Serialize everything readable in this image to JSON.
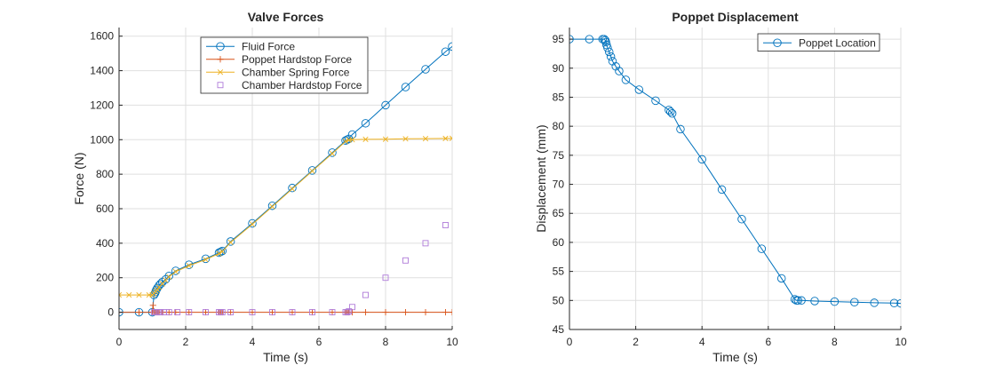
{
  "chart_data": [
    {
      "type": "line",
      "title": "Valve Forces",
      "xlabel": "Time (s)",
      "ylabel": "Force (N)",
      "xlim": [
        0,
        10
      ],
      "ylim": [
        -100,
        1650
      ],
      "xticks": [
        0,
        2,
        4,
        6,
        8,
        10
      ],
      "yticks": [
        0,
        200,
        400,
        600,
        800,
        1000,
        1200,
        1400,
        1600
      ],
      "grid": true,
      "legend_position": "top-center",
      "series": [
        {
          "name": "Fluid Force",
          "color": "#0072BD",
          "marker": "circle",
          "line": true,
          "x": [
            0,
            0.6,
            1.0,
            1.05,
            1.08,
            1.1,
            1.12,
            1.15,
            1.2,
            1.25,
            1.3,
            1.4,
            1.5,
            1.7,
            2.1,
            2.6,
            3.0,
            3.05,
            3.1,
            3.35,
            4.0,
            4.6,
            5.2,
            5.8,
            6.4,
            6.8,
            6.85,
            6.9,
            7.0,
            7.4,
            8.0,
            8.6,
            9.2,
            9.8,
            10.0
          ],
          "y": [
            0,
            0,
            0,
            100,
            110,
            120,
            130,
            140,
            155,
            165,
            175,
            190,
            210,
            240,
            275,
            310,
            345,
            350,
            355,
            410,
            515,
            617,
            720,
            822,
            925,
            995,
            1000,
            1005,
            1030,
            1095,
            1200,
            1305,
            1408,
            1510,
            1540
          ]
        },
        {
          "name": "Poppet Hardstop Force",
          "color": "#D95319",
          "marker": "plus",
          "line": true,
          "x": [
            0,
            0.6,
            1.0,
            1.02,
            1.05,
            1.1,
            1.15,
            1.2,
            1.3,
            1.5,
            1.7,
            2.1,
            2.6,
            3.0,
            3.05,
            3.1,
            3.35,
            4.0,
            4.6,
            5.2,
            5.8,
            6.4,
            6.8,
            6.85,
            6.9,
            7.0,
            7.4,
            8.0,
            8.6,
            9.2,
            9.8,
            10.0
          ],
          "y": [
            0,
            0,
            0,
            40,
            0,
            0,
            0,
            0,
            0,
            0,
            0,
            0,
            0,
            0,
            0,
            0,
            0,
            0,
            0,
            0,
            0,
            0,
            0,
            0,
            0,
            0,
            0,
            0,
            0,
            0,
            0,
            0
          ]
        },
        {
          "name": "Chamber Spring Force",
          "color": "#EDB120",
          "marker": "x",
          "line": true,
          "x": [
            0,
            0.3,
            0.6,
            0.9,
            1.0,
            1.05,
            1.1,
            1.15,
            1.2,
            1.3,
            1.4,
            1.5,
            1.7,
            2.1,
            2.6,
            3.0,
            3.1,
            3.35,
            4.0,
            4.6,
            5.2,
            5.8,
            6.4,
            6.8,
            6.9,
            7.0,
            7.4,
            8.0,
            8.6,
            9.2,
            9.8,
            10.0
          ],
          "y": [
            100,
            100,
            100,
            100,
            100,
            110,
            120,
            130,
            145,
            165,
            185,
            205,
            235,
            270,
            305,
            340,
            352,
            405,
            510,
            612,
            715,
            818,
            920,
            990,
            998,
            1000,
            1002,
            1003,
            1005,
            1006,
            1007,
            1008
          ]
        },
        {
          "name": "Chamber Hardstop Force",
          "color": "#B07CD9",
          "marker": "square",
          "line": false,
          "x": [
            1.05,
            1.1,
            1.15,
            1.2,
            1.25,
            1.35,
            1.5,
            1.75,
            2.1,
            2.6,
            3.0,
            3.05,
            3.1,
            3.35,
            4.0,
            4.6,
            5.2,
            5.8,
            6.4,
            6.8,
            6.85,
            6.9,
            7.0,
            7.4,
            8.0,
            8.6,
            9.2,
            9.8
          ],
          "y": [
            0,
            0,
            0,
            0,
            0,
            0,
            0,
            0,
            0,
            0,
            0,
            0,
            0,
            0,
            0,
            0,
            0,
            0,
            0,
            0,
            0,
            5,
            30,
            100,
            200,
            300,
            400,
            505
          ]
        }
      ]
    },
    {
      "type": "line",
      "title": "Poppet Displacement",
      "xlabel": "Time (s)",
      "ylabel": "Displacement (mm)",
      "xlim": [
        0,
        10
      ],
      "ylim": [
        45,
        97
      ],
      "xticks": [
        0,
        2,
        4,
        6,
        8,
        10
      ],
      "yticks": [
        45,
        50,
        55,
        60,
        65,
        70,
        75,
        80,
        85,
        90,
        95
      ],
      "grid": true,
      "legend_position": "top-right",
      "series": [
        {
          "name": "Poppet Location",
          "color": "#0072BD",
          "marker": "circle",
          "line": true,
          "x": [
            0,
            0.6,
            1.0,
            1.05,
            1.08,
            1.1,
            1.12,
            1.15,
            1.2,
            1.25,
            1.3,
            1.4,
            1.5,
            1.7,
            2.1,
            2.6,
            3.0,
            3.05,
            3.1,
            3.35,
            4.0,
            4.6,
            5.2,
            5.8,
            6.4,
            6.8,
            6.85,
            6.9,
            7.0,
            7.4,
            8.0,
            8.6,
            9.2,
            9.8,
            10.0
          ],
          "y": [
            95,
            95,
            95,
            95,
            94.8,
            94.5,
            94.0,
            93.5,
            92.8,
            92.0,
            91.2,
            90.3,
            89.5,
            88.0,
            86.3,
            84.4,
            82.8,
            82.5,
            82.2,
            79.5,
            74.3,
            69.1,
            64.0,
            58.9,
            53.8,
            50.2,
            50.0,
            50.0,
            50.0,
            49.9,
            49.8,
            49.7,
            49.6,
            49.55,
            49.5
          ]
        }
      ]
    }
  ]
}
